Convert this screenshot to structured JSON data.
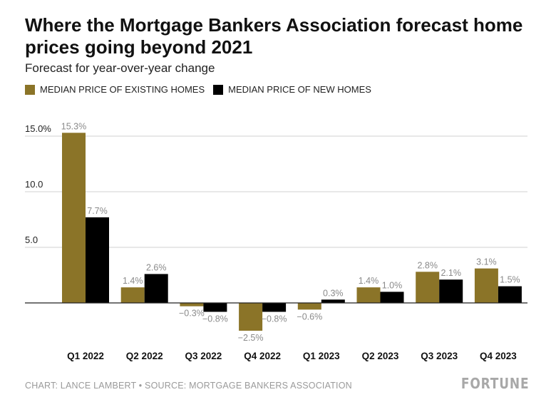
{
  "header": {
    "title": "Where the Mortgage Bankers Association forecast home prices going beyond 2021",
    "subtitle": "Forecast for year-over-year change"
  },
  "legend": {
    "existing_label": "MEDIAN PRICE OF EXISTING HOMES",
    "new_label": "MEDIAN PRICE OF NEW HOMES"
  },
  "colors": {
    "existing": "#8b7428",
    "new": "#000000",
    "grid": "#d0d0d0",
    "axis": "#222222",
    "data_label": "#8a8a8a"
  },
  "footer": {
    "source": "CHART: LANCE LAMBERT • SOURCE: MORTGAGE BANKERS ASSOCIATION",
    "brand": "FORTUNE"
  },
  "chart_data": {
    "type": "bar",
    "categories": [
      "Q1 2022",
      "Q2 2022",
      "Q3 2022",
      "Q4 2022",
      "Q1 2023",
      "Q2 2023",
      "Q3 2023",
      "Q4 2023"
    ],
    "series": [
      {
        "name": "MEDIAN PRICE OF EXISTING HOMES",
        "values": [
          15.3,
          1.4,
          -0.3,
          -2.5,
          -0.6,
          1.4,
          2.8,
          3.1
        ],
        "labels": [
          "15.3%",
          "1.4%",
          "−0.3%",
          "−2.5%",
          "−0.6%",
          "1.4%",
          "2.8%",
          "3.1%"
        ]
      },
      {
        "name": "MEDIAN PRICE OF NEW HOMES",
        "values": [
          7.7,
          2.6,
          -0.8,
          -0.8,
          0.3,
          1.0,
          2.1,
          1.5
        ],
        "labels": [
          "7.7%",
          "2.6%",
          "−0.8%",
          "−0.8%",
          "0.3%",
          "1.0%",
          "2.1%",
          "1.5%"
        ]
      }
    ],
    "y_ticks": [
      {
        "value": 5,
        "label": "5.0"
      },
      {
        "value": 10,
        "label": "10.0"
      },
      {
        "value": 15,
        "label": "15.0%"
      }
    ],
    "ylim": [
      -2.5,
      15.3
    ],
    "grid": true,
    "legend_position": "top-left"
  }
}
